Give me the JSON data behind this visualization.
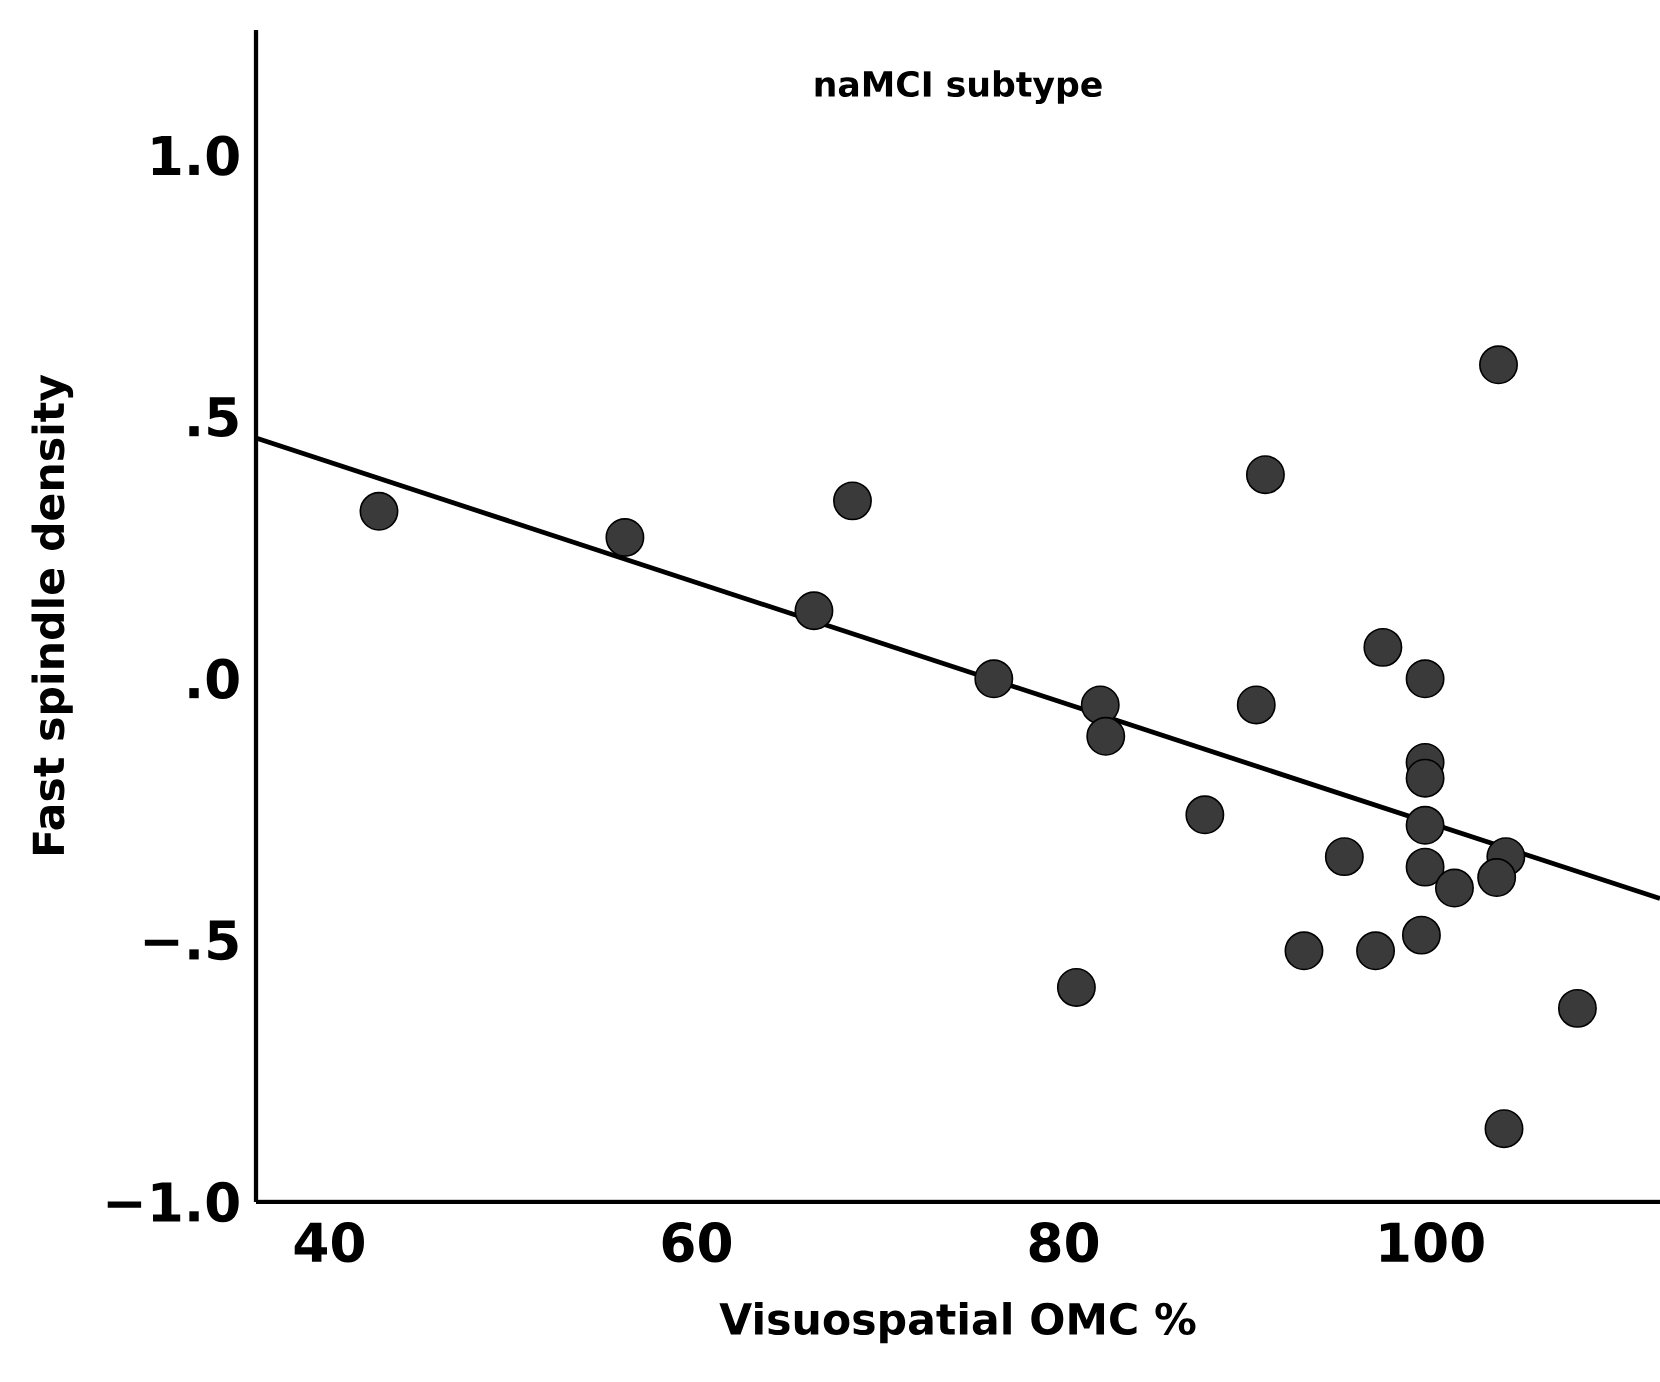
{
  "chart_data": {
    "type": "scatter",
    "title": "naMCI subtype",
    "xlabel": "Visuospatial OMC %",
    "ylabel": "Fast spindle density",
    "xlim": [
      36,
      112.5
    ],
    "ylim": [
      -1.0,
      1.24
    ],
    "xticks": [
      40,
      60,
      80,
      100
    ],
    "yticks": [
      {
        "value": 1.0,
        "label": "1.0"
      },
      {
        "value": 0.5,
        "label": ".5"
      },
      {
        "value": 0,
        "label": ".0"
      },
      {
        "value": -0.5,
        "label": "−.5"
      },
      {
        "value": -1.0,
        "label": "−1.0"
      }
    ],
    "grid": false,
    "series": [
      {
        "color": "#3a3a3a",
        "marker": "circle",
        "x": [
          42.7,
          56.1,
          66.4,
          68.5,
          103.7,
          91.0,
          76.2,
          82.0,
          82.3,
          90.5,
          97.4,
          99.7,
          99.7,
          99.7,
          87.7,
          99.7,
          95.3,
          99.7,
          101.3,
          104.1,
          103.6,
          99.5,
          93.1,
          97.0,
          80.7,
          108.0,
          104.0
        ],
        "values": [
          0.32,
          0.27,
          0.13,
          0.34,
          0.6,
          0.39,
          0.0,
          -0.05,
          -0.11,
          -0.05,
          0.06,
          0.0,
          -0.16,
          -0.19,
          -0.26,
          -0.28,
          -0.34,
          -0.36,
          -0.4,
          -0.34,
          -0.38,
          -0.49,
          -0.52,
          -0.52,
          -0.59,
          -0.63,
          -0.86
        ]
      },
      {
        "type": "line",
        "color": "#000000",
        "marker": "none",
        "line_style": "solid",
        "x": [
          36,
          112.5
        ],
        "values": [
          0.46,
          -0.42
        ]
      }
    ]
  }
}
